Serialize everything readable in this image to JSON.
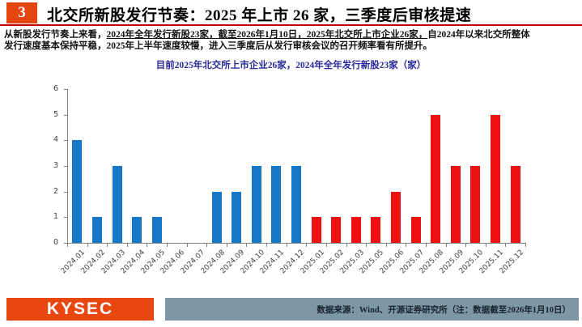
{
  "header": {
    "slide_number": "3",
    "title": "北交所新股发行节奏：2025 年上市 26 家，三季度后审核提速"
  },
  "body": {
    "line1_lead": "从新股发行节奏上来看，",
    "line1_underlined": "2024年全年发行新股23家，截至2026年1月10日，2025年北交所上市企业26家，",
    "line1_rest": "自2024年以来北交所整体",
    "line2": "发行速度基本保持平稳，2025年上半年速度较慢，进入三季度后从发行审核会议的召开频率看有所提升。"
  },
  "chart_data": {
    "type": "bar",
    "title": "目前2025年北交所上市企业26家，2024年全年发行新股23家（家）",
    "categories": [
      "2024.01",
      "2024.02",
      "2024.03",
      "2024.04",
      "2024.05",
      "2024.06",
      "2024.07",
      "2024.08",
      "2024.09",
      "2024.10",
      "2024.11",
      "2024.12",
      "2025.01",
      "2025.02",
      "2025.03",
      "2025.05",
      "2025.06",
      "2025.07",
      "2025.08",
      "2025.09",
      "2025.10",
      "2025.11",
      "2025.12"
    ],
    "values": [
      4,
      1,
      3,
      1,
      1,
      0,
      0,
      2,
      2,
      3,
      3,
      3,
      1,
      1,
      1,
      1,
      2,
      1,
      5,
      3,
      3,
      5,
      3
    ],
    "bar_colors": {
      "2024": "#1878C8",
      "2025": "#EE1111"
    },
    "xlabel": "",
    "ylabel": "",
    "ylim": [
      0,
      6
    ],
    "yticks": [
      0,
      1,
      2,
      3,
      4,
      5,
      6
    ],
    "grid": false,
    "legend": "none",
    "totals": {
      "2024": 23,
      "2025": 26
    }
  },
  "footer": {
    "logo_text": "KYSEC",
    "source_note": "数据来源：Wind、开源证券研究所（注：数据截至2026年1月10日）"
  },
  "colors": {
    "accent_orange": "#E2450F",
    "logo_orange": "#E8470F",
    "title_rule_red": "#C00000",
    "bar_blue": "#1878C8",
    "bar_red": "#EE1111",
    "chart_title_blue": "#2B2B9B",
    "footer_bar_slate": "#7E97A6"
  }
}
